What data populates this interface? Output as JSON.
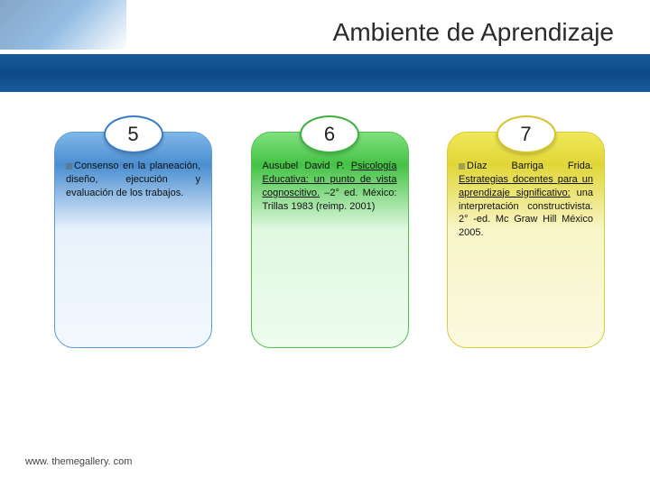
{
  "title": "Ambiente de Aprendizaje",
  "footer": "www. themegallery. com",
  "cards": [
    {
      "number": "5",
      "text_lead": "Consenso",
      "text_rest": " en la planeación, diseño, ejecución y evaluación de los trabajos.",
      "has_bullet": true,
      "underline_lead": false
    },
    {
      "number": "6",
      "text_lead": "Ausubel David P. ",
      "underline_part": "Psicología Educativa: un punto de vista cognoscitivo.",
      "text_rest": " –2° ed. México: Trillas 1983 (reimp. 2001)",
      "has_bullet": false
    },
    {
      "number": "7",
      "text_lead": "Díaz Barriga Frida. ",
      "underline_part": "Estrategias docentes para un aprendizaje significativo:",
      "text_rest": " una interpretación constructivista. 2° -ed. Mc Graw Hill México 2005.",
      "has_bullet": true
    }
  ],
  "colors": {
    "band": "#0d4a87",
    "blue": "#4a8dd0",
    "green": "#45c245",
    "yellow": "#e0d638"
  }
}
